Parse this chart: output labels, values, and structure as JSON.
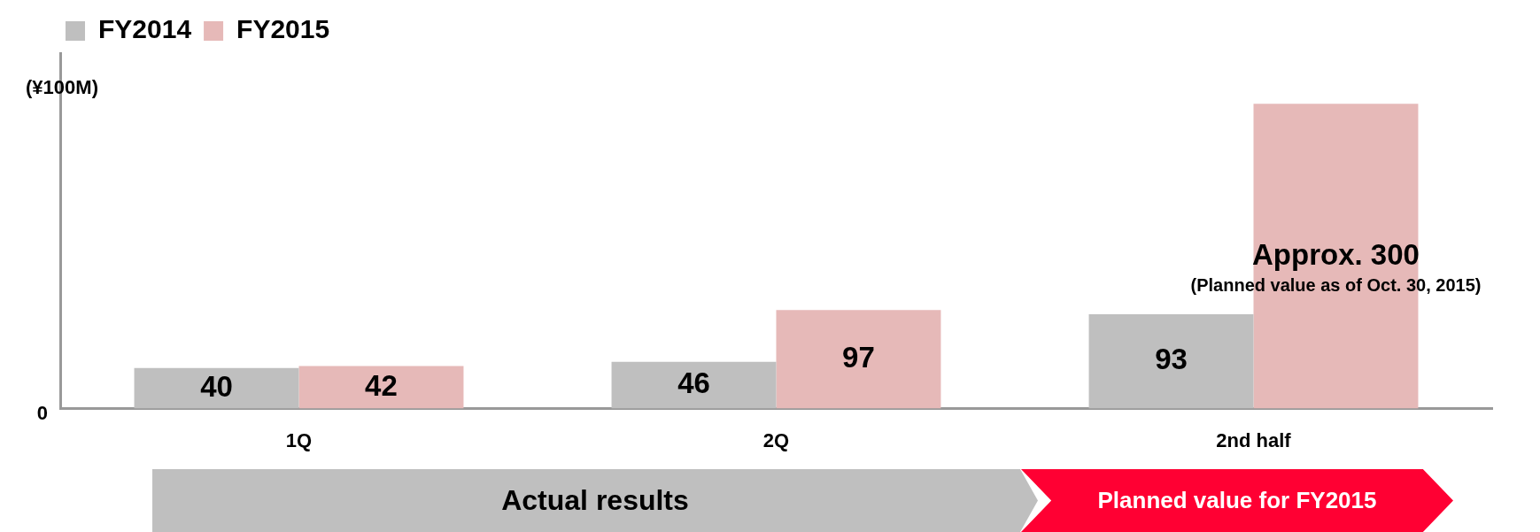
{
  "chart_data": {
    "type": "bar",
    "ylabel": "(¥100M)",
    "categories": [
      "1Q",
      "2Q",
      "2nd half"
    ],
    "series": [
      {
        "name": "FY2014",
        "color": "#bfbfbf",
        "values": [
          40,
          46,
          93
        ],
        "value_labels": [
          "40",
          "46",
          "93"
        ]
      },
      {
        "name": "FY2015",
        "color": "#e6b9b8",
        "values": [
          42,
          97,
          300
        ],
        "value_labels": [
          "42",
          "97",
          "Approx. 300"
        ]
      }
    ],
    "legend": "top left",
    "grid": false,
    "tick_labels": "x",
    "annotations": [
      "0",
      "(Planned value as of Oct. 30, 2015)",
      "Actual results",
      "Planned value for FY2015"
    ]
  }
}
